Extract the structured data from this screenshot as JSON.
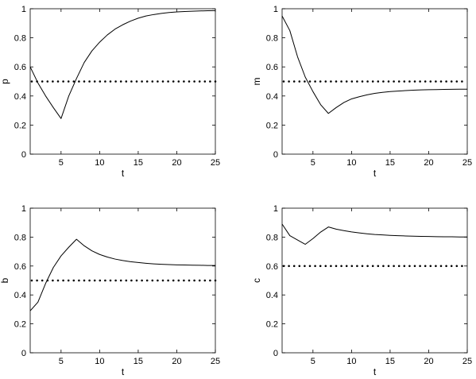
{
  "chart_data": [
    {
      "type": "line",
      "xlabel": "t",
      "ylabel": "p",
      "xlim": [
        1,
        25
      ],
      "ylim": [
        0,
        1
      ],
      "xticks": [
        5,
        10,
        15,
        20,
        25
      ],
      "yticks": [
        0,
        0.2,
        0.4,
        0.6,
        0.8,
        1
      ],
      "grid": false,
      "series": [
        {
          "style": "solid",
          "color": "#000000",
          "x": [
            1,
            2,
            3,
            4,
            5,
            6,
            7,
            8,
            9,
            10,
            11,
            12,
            13,
            14,
            15,
            16,
            17,
            18,
            19,
            20,
            21,
            22,
            23,
            24,
            25
          ],
          "y": [
            0.6,
            0.49,
            0.4,
            0.32,
            0.245,
            0.4,
            0.52,
            0.63,
            0.71,
            0.77,
            0.82,
            0.86,
            0.89,
            0.915,
            0.935,
            0.95,
            0.96,
            0.968,
            0.974,
            0.978,
            0.981,
            0.983,
            0.985,
            0.986,
            0.987
          ]
        },
        {
          "style": "dotted",
          "color": "#000000",
          "x": [
            1,
            25
          ],
          "y": [
            0.5,
            0.5
          ]
        }
      ]
    },
    {
      "type": "line",
      "xlabel": "t",
      "ylabel": "m",
      "xlim": [
        1,
        25
      ],
      "ylim": [
        0,
        1
      ],
      "xticks": [
        5,
        10,
        15,
        20,
        25
      ],
      "yticks": [
        0,
        0.2,
        0.4,
        0.6,
        0.8,
        1
      ],
      "grid": false,
      "series": [
        {
          "style": "solid",
          "color": "#000000",
          "x": [
            1,
            2,
            3,
            4,
            5,
            6,
            7,
            8,
            9,
            10,
            11,
            12,
            13,
            14,
            15,
            16,
            17,
            18,
            19,
            20,
            21,
            22,
            23,
            24,
            25
          ],
          "y": [
            0.95,
            0.85,
            0.67,
            0.53,
            0.43,
            0.34,
            0.28,
            0.32,
            0.355,
            0.38,
            0.395,
            0.408,
            0.418,
            0.425,
            0.43,
            0.434,
            0.437,
            0.44,
            0.442,
            0.443,
            0.444,
            0.445,
            0.446,
            0.447,
            0.447
          ]
        },
        {
          "style": "dotted",
          "color": "#000000",
          "x": [
            1,
            25
          ],
          "y": [
            0.5,
            0.5
          ]
        }
      ]
    },
    {
      "type": "line",
      "xlabel": "t",
      "ylabel": "b",
      "xlim": [
        1,
        25
      ],
      "ylim": [
        0,
        1
      ],
      "xticks": [
        5,
        10,
        15,
        20,
        25
      ],
      "yticks": [
        0,
        0.2,
        0.4,
        0.6,
        0.8,
        1
      ],
      "grid": false,
      "series": [
        {
          "style": "solid",
          "color": "#000000",
          "x": [
            1,
            2,
            3,
            4,
            5,
            6,
            7,
            8,
            9,
            10,
            11,
            12,
            13,
            14,
            15,
            16,
            17,
            18,
            19,
            20,
            21,
            22,
            23,
            24,
            25
          ],
          "y": [
            0.29,
            0.35,
            0.48,
            0.59,
            0.67,
            0.73,
            0.785,
            0.74,
            0.705,
            0.68,
            0.662,
            0.648,
            0.638,
            0.63,
            0.624,
            0.619,
            0.615,
            0.612,
            0.61,
            0.608,
            0.607,
            0.606,
            0.605,
            0.604,
            0.604
          ]
        },
        {
          "style": "dotted",
          "color": "#000000",
          "x": [
            1,
            25
          ],
          "y": [
            0.5,
            0.5
          ]
        }
      ]
    },
    {
      "type": "line",
      "xlabel": "t",
      "ylabel": "c",
      "xlim": [
        1,
        25
      ],
      "ylim": [
        0,
        1
      ],
      "xticks": [
        5,
        10,
        15,
        20,
        25
      ],
      "yticks": [
        0,
        0.2,
        0.4,
        0.6,
        0.8,
        1
      ],
      "grid": false,
      "series": [
        {
          "style": "solid",
          "color": "#000000",
          "x": [
            1,
            2,
            3,
            4,
            5,
            6,
            7,
            8,
            9,
            10,
            11,
            12,
            13,
            14,
            15,
            16,
            17,
            18,
            19,
            20,
            21,
            22,
            23,
            24,
            25
          ],
          "y": [
            0.89,
            0.81,
            0.78,
            0.75,
            0.79,
            0.835,
            0.87,
            0.855,
            0.845,
            0.836,
            0.829,
            0.823,
            0.818,
            0.815,
            0.812,
            0.81,
            0.808,
            0.806,
            0.805,
            0.804,
            0.803,
            0.802,
            0.802,
            0.801,
            0.801
          ]
        },
        {
          "style": "dotted",
          "color": "#000000",
          "x": [
            1,
            25
          ],
          "y": [
            0.6,
            0.6
          ]
        }
      ]
    }
  ]
}
